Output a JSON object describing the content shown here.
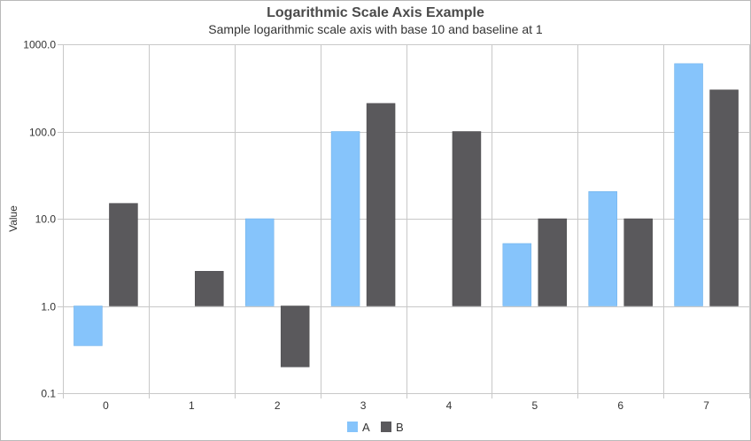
{
  "chart_data": {
    "type": "bar",
    "title": "Logarithmic Scale Axis Example",
    "subtitle": "Sample logarithmic scale axis with base 10 and baseline at 1",
    "xlabel": "",
    "ylabel": "Value",
    "y_scale": "log",
    "log_base": 10,
    "baseline": 1,
    "ylim": [
      0.1,
      1000
    ],
    "yticks": [
      "0.1",
      "1.0",
      "10.0",
      "100.0",
      "1000.0"
    ],
    "categories": [
      "0",
      "1",
      "2",
      "3",
      "4",
      "5",
      "6",
      "7"
    ],
    "series": [
      {
        "name": "A",
        "color": "#86c4fb",
        "values": [
          0.35,
          null,
          10,
          100,
          null,
          5.2,
          20.5,
          600
        ]
      },
      {
        "name": "B",
        "color": "#5a595c",
        "values": [
          15,
          2.5,
          0.2,
          210,
          100,
          10,
          10,
          300
        ]
      }
    ],
    "grid": true,
    "legend_position": "bottom-center"
  }
}
